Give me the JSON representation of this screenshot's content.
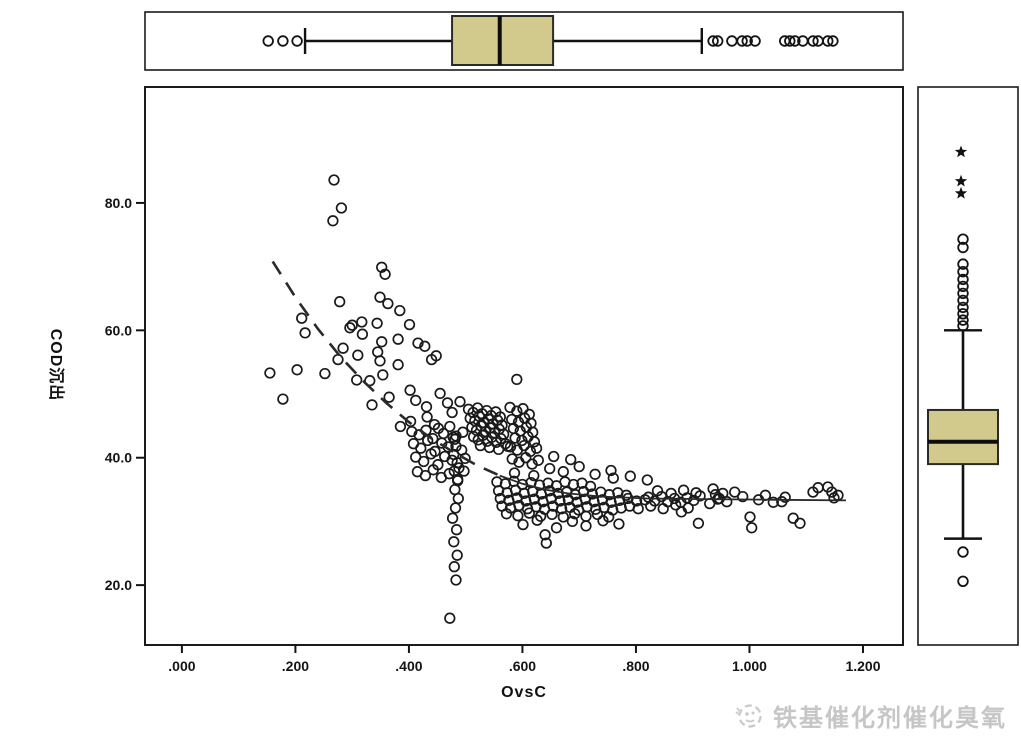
{
  "page": {
    "background": "#ffffff"
  },
  "watermark": {
    "text": "铁基催化剂催化臭氧",
    "color": "#c6c6c6",
    "icon": "brand-logo-icon"
  },
  "chart_data": {
    "type": "scatter",
    "title": "",
    "xlabel": "OvsC",
    "ylabel": "COD沉出",
    "xlim": [
      -0.065,
      1.2705
    ],
    "ylim": [
      10.6,
      98.2
    ],
    "x_ticks": [
      0.0,
      0.2,
      0.4,
      0.6,
      0.8,
      1.0,
      1.2
    ],
    "x_tick_labels": [
      ".000",
      ".200",
      ".400",
      ".600",
      ".800",
      "1.000",
      "1.200"
    ],
    "y_ticks": [
      20,
      40,
      60,
      80
    ],
    "y_tick_labels": [
      "20.0",
      "40.0",
      "60.0",
      "80.0"
    ],
    "grid": false,
    "legend": "none",
    "marker": {
      "shape": "open-circle",
      "color": "#1a1a1a",
      "radius_px": 4.8
    },
    "box_fill": "#d2ca8c",
    "box_stroke": "#2b2b26",
    "fit_line": {
      "color": "#2a2a2a",
      "dashed_points": [
        [
          0.16,
          70.8
        ],
        [
          0.2,
          65.2
        ],
        [
          0.24,
          60.2
        ],
        [
          0.28,
          55.8
        ],
        [
          0.32,
          52.0
        ],
        [
          0.36,
          48.6
        ],
        [
          0.4,
          45.6
        ],
        [
          0.44,
          43.0
        ],
        [
          0.48,
          40.8
        ],
        [
          0.52,
          38.8
        ],
        [
          0.56,
          37.2
        ]
      ],
      "solid_points": [
        [
          0.56,
          37.2
        ],
        [
          0.6,
          35.9
        ],
        [
          0.64,
          35.0
        ],
        [
          0.68,
          34.4
        ],
        [
          0.74,
          33.9
        ],
        [
          0.82,
          33.6
        ],
        [
          0.92,
          33.5
        ],
        [
          1.05,
          33.4
        ],
        [
          1.17,
          33.3
        ]
      ]
    },
    "marginal_box_x": {
      "orientation": "horizontal",
      "whisker_low": 0.217,
      "q1": 0.476,
      "median": 0.56,
      "q3": 0.654,
      "whisker_high": 0.916,
      "outliers_low": [
        0.152,
        0.178,
        0.203
      ],
      "outliers_high": [
        0.936,
        0.944,
        0.969,
        0.987,
        0.996,
        1.01,
        1.062,
        1.071,
        1.08,
        1.094,
        1.112,
        1.121,
        1.138,
        1.147
      ]
    },
    "marginal_box_y": {
      "orientation": "vertical",
      "whisker_low": 27.3,
      "q1": 39.0,
      "median": 42.5,
      "q3": 47.5,
      "whisker_high": 60.0,
      "outliers_low": [
        25.2,
        20.6
      ],
      "outliers_high": [
        60.7,
        61.6,
        62.6,
        63.6,
        64.7,
        65.8,
        66.9,
        68.0,
        69.2,
        70.4,
        73.0,
        74.3
      ],
      "extremes_high": [
        81.5,
        83.4,
        88.0
      ]
    },
    "points": [
      [
        0.268,
        83.6
      ],
      [
        0.281,
        79.2
      ],
      [
        0.266,
        77.2
      ],
      [
        0.352,
        69.9
      ],
      [
        0.358,
        68.8
      ],
      [
        0.349,
        65.2
      ],
      [
        0.278,
        64.5
      ],
      [
        0.363,
        64.2
      ],
      [
        0.384,
        63.1
      ],
      [
        0.211,
        61.9
      ],
      [
        0.317,
        61.3
      ],
      [
        0.344,
        61.1
      ],
      [
        0.401,
        60.9
      ],
      [
        0.3,
        60.8
      ],
      [
        0.296,
        60.4
      ],
      [
        0.217,
        59.6
      ],
      [
        0.318,
        59.4
      ],
      [
        0.381,
        58.6
      ],
      [
        0.352,
        58.2
      ],
      [
        0.416,
        58.0
      ],
      [
        0.428,
        57.5
      ],
      [
        0.448,
        56.0
      ],
      [
        0.44,
        55.4
      ],
      [
        0.284,
        57.2
      ],
      [
        0.345,
        56.6
      ],
      [
        0.31,
        56.1
      ],
      [
        0.275,
        55.4
      ],
      [
        0.349,
        55.2
      ],
      [
        0.381,
        54.6
      ],
      [
        0.203,
        53.8
      ],
      [
        0.155,
        53.3
      ],
      [
        0.252,
        53.2
      ],
      [
        0.354,
        53.0
      ],
      [
        0.308,
        52.2
      ],
      [
        0.331,
        52.1
      ],
      [
        0.59,
        52.3
      ],
      [
        0.178,
        49.2
      ],
      [
        0.335,
        48.3
      ],
      [
        0.365,
        49.5
      ],
      [
        0.402,
        50.6
      ],
      [
        0.455,
        50.1
      ],
      [
        0.412,
        49.0
      ],
      [
        0.468,
        48.6
      ],
      [
        0.431,
        48.0
      ],
      [
        0.476,
        47.1
      ],
      [
        0.49,
        48.8
      ],
      [
        0.432,
        46.4
      ],
      [
        0.445,
        45.2
      ],
      [
        0.403,
        45.7
      ],
      [
        0.385,
        44.9
      ],
      [
        0.405,
        44.1
      ],
      [
        0.418,
        43.6
      ],
      [
        0.43,
        44.3
      ],
      [
        0.442,
        43.0
      ],
      [
        0.452,
        44.6
      ],
      [
        0.461,
        43.8
      ],
      [
        0.472,
        44.9
      ],
      [
        0.483,
        43.4
      ],
      [
        0.495,
        44.0
      ],
      [
        0.408,
        42.2
      ],
      [
        0.421,
        41.5
      ],
      [
        0.433,
        42.7
      ],
      [
        0.446,
        41.0
      ],
      [
        0.458,
        42.3
      ],
      [
        0.469,
        41.7
      ],
      [
        0.481,
        42.9
      ],
      [
        0.493,
        41.2
      ],
      [
        0.412,
        40.1
      ],
      [
        0.426,
        39.4
      ],
      [
        0.439,
        40.6
      ],
      [
        0.451,
        38.9
      ],
      [
        0.463,
        40.2
      ],
      [
        0.476,
        39.6
      ],
      [
        0.488,
        38.4
      ],
      [
        0.499,
        39.9
      ],
      [
        0.415,
        37.8
      ],
      [
        0.429,
        37.2
      ],
      [
        0.443,
        38.1
      ],
      [
        0.457,
        36.9
      ],
      [
        0.471,
        37.5
      ],
      [
        0.486,
        36.6
      ],
      [
        0.497,
        37.9
      ],
      [
        0.505,
        47.6
      ],
      [
        0.513,
        47.1
      ],
      [
        0.521,
        47.8
      ],
      [
        0.529,
        46.9
      ],
      [
        0.537,
        47.4
      ],
      [
        0.545,
        46.6
      ],
      [
        0.553,
        47.2
      ],
      [
        0.561,
        46.4
      ],
      [
        0.508,
        46.2
      ],
      [
        0.516,
        45.8
      ],
      [
        0.524,
        46.5
      ],
      [
        0.532,
        45.5
      ],
      [
        0.54,
        46.1
      ],
      [
        0.548,
        45.3
      ],
      [
        0.556,
        45.9
      ],
      [
        0.564,
        45.1
      ],
      [
        0.511,
        44.8
      ],
      [
        0.519,
        44.3
      ],
      [
        0.527,
        45.0
      ],
      [
        0.535,
        44.1
      ],
      [
        0.543,
        44.7
      ],
      [
        0.551,
        43.9
      ],
      [
        0.559,
        44.5
      ],
      [
        0.567,
        43.7
      ],
      [
        0.514,
        43.3
      ],
      [
        0.522,
        42.8
      ],
      [
        0.53,
        43.5
      ],
      [
        0.538,
        42.6
      ],
      [
        0.546,
        43.2
      ],
      [
        0.554,
        42.4
      ],
      [
        0.562,
        43.0
      ],
      [
        0.57,
        42.2
      ],
      [
        0.526,
        41.9
      ],
      [
        0.542,
        41.6
      ],
      [
        0.558,
        41.3
      ],
      [
        0.574,
        41.8
      ],
      [
        0.478,
        43.2
      ],
      [
        0.483,
        41.8
      ],
      [
        0.479,
        40.5
      ],
      [
        0.485,
        39.2
      ],
      [
        0.48,
        37.9
      ],
      [
        0.486,
        36.4
      ],
      [
        0.481,
        35.0
      ],
      [
        0.487,
        33.6
      ],
      [
        0.482,
        32.1
      ],
      [
        0.477,
        30.5
      ],
      [
        0.484,
        28.7
      ],
      [
        0.479,
        26.8
      ],
      [
        0.485,
        24.7
      ],
      [
        0.48,
        22.9
      ],
      [
        0.483,
        20.8
      ],
      [
        0.472,
        14.8
      ],
      [
        0.578,
        47.9
      ],
      [
        0.59,
        47.3
      ],
      [
        0.601,
        47.7
      ],
      [
        0.612,
        46.8
      ],
      [
        0.581,
        46.0
      ],
      [
        0.593,
        45.6
      ],
      [
        0.604,
        46.2
      ],
      [
        0.615,
        45.4
      ],
      [
        0.584,
        44.6
      ],
      [
        0.596,
        44.2
      ],
      [
        0.607,
        44.8
      ],
      [
        0.618,
        44.0
      ],
      [
        0.587,
        43.1
      ],
      [
        0.599,
        42.7
      ],
      [
        0.61,
        43.3
      ],
      [
        0.621,
        42.5
      ],
      [
        0.579,
        41.7
      ],
      [
        0.591,
        41.2
      ],
      [
        0.603,
        41.9
      ],
      [
        0.614,
        41.0
      ],
      [
        0.625,
        41.5
      ],
      [
        0.582,
        39.8
      ],
      [
        0.594,
        39.3
      ],
      [
        0.606,
        40.0
      ],
      [
        0.617,
        39.0
      ],
      [
        0.628,
        39.6
      ],
      [
        0.586,
        37.6
      ],
      [
        0.62,
        37.2
      ],
      [
        0.555,
        36.2
      ],
      [
        0.57,
        35.9
      ],
      [
        0.585,
        36.3
      ],
      [
        0.6,
        35.8
      ],
      [
        0.615,
        36.1
      ],
      [
        0.63,
        35.7
      ],
      [
        0.645,
        36.0
      ],
      [
        0.66,
        35.6
      ],
      [
        0.675,
        36.2
      ],
      [
        0.69,
        35.8
      ],
      [
        0.705,
        36.0
      ],
      [
        0.72,
        35.5
      ],
      [
        0.558,
        34.8
      ],
      [
        0.573,
        34.5
      ],
      [
        0.588,
        34.9
      ],
      [
        0.603,
        34.4
      ],
      [
        0.618,
        34.7
      ],
      [
        0.633,
        34.3
      ],
      [
        0.648,
        34.8
      ],
      [
        0.663,
        34.4
      ],
      [
        0.678,
        34.6
      ],
      [
        0.693,
        34.2
      ],
      [
        0.708,
        34.7
      ],
      [
        0.723,
        34.3
      ],
      [
        0.738,
        34.6
      ],
      [
        0.753,
        34.2
      ],
      [
        0.768,
        34.5
      ],
      [
        0.783,
        34.1
      ],
      [
        0.561,
        33.6
      ],
      [
        0.576,
        33.3
      ],
      [
        0.591,
        33.7
      ],
      [
        0.606,
        33.2
      ],
      [
        0.621,
        33.5
      ],
      [
        0.636,
        33.1
      ],
      [
        0.651,
        33.6
      ],
      [
        0.666,
        33.2
      ],
      [
        0.681,
        33.4
      ],
      [
        0.696,
        33.0
      ],
      [
        0.711,
        33.5
      ],
      [
        0.726,
        33.1
      ],
      [
        0.741,
        33.4
      ],
      [
        0.756,
        33.0
      ],
      [
        0.771,
        33.3
      ],
      [
        0.786,
        33.6
      ],
      [
        0.801,
        33.2
      ],
      [
        0.816,
        33.4
      ],
      [
        0.564,
        32.4
      ],
      [
        0.579,
        32.1
      ],
      [
        0.594,
        32.5
      ],
      [
        0.609,
        32.0
      ],
      [
        0.624,
        32.3
      ],
      [
        0.639,
        31.9
      ],
      [
        0.654,
        32.4
      ],
      [
        0.669,
        32.0
      ],
      [
        0.684,
        32.2
      ],
      [
        0.699,
        31.8
      ],
      [
        0.714,
        32.3
      ],
      [
        0.729,
        31.9
      ],
      [
        0.744,
        32.2
      ],
      [
        0.759,
        31.8
      ],
      [
        0.774,
        32.1
      ],
      [
        0.789,
        32.4
      ],
      [
        0.804,
        32.0
      ],
      [
        0.572,
        31.2
      ],
      [
        0.592,
        30.9
      ],
      [
        0.612,
        31.3
      ],
      [
        0.632,
        30.8
      ],
      [
        0.652,
        31.1
      ],
      [
        0.672,
        30.7
      ],
      [
        0.692,
        31.2
      ],
      [
        0.712,
        30.8
      ],
      [
        0.732,
        31.1
      ],
      [
        0.752,
        30.7
      ],
      [
        0.601,
        29.5
      ],
      [
        0.626,
        30.2
      ],
      [
        0.64,
        27.9
      ],
      [
        0.642,
        26.6
      ],
      [
        0.66,
        29.0
      ],
      [
        0.688,
        30.0
      ],
      [
        0.712,
        29.3
      ],
      [
        0.742,
        30.1
      ],
      [
        0.77,
        29.6
      ],
      [
        0.648,
        38.3
      ],
      [
        0.672,
        37.8
      ],
      [
        0.7,
        38.6
      ],
      [
        0.728,
        37.4
      ],
      [
        0.756,
        38.0
      ],
      [
        0.79,
        37.1
      ],
      [
        0.655,
        40.2
      ],
      [
        0.685,
        39.7
      ],
      [
        0.76,
        36.8
      ],
      [
        0.82,
        36.5
      ],
      [
        0.822,
        33.8
      ],
      [
        0.833,
        33.2
      ],
      [
        0.845,
        33.9
      ],
      [
        0.856,
        33.1
      ],
      [
        0.868,
        33.6
      ],
      [
        0.879,
        33.0
      ],
      [
        0.89,
        33.7
      ],
      [
        0.902,
        33.3
      ],
      [
        0.913,
        34.0
      ],
      [
        0.826,
        32.4
      ],
      [
        0.848,
        32.0
      ],
      [
        0.87,
        32.6
      ],
      [
        0.892,
        32.1
      ],
      [
        0.838,
        34.8
      ],
      [
        0.862,
        34.4
      ],
      [
        0.884,
        34.9
      ],
      [
        0.906,
        34.5
      ],
      [
        0.88,
        31.5
      ],
      [
        0.91,
        29.7
      ],
      [
        0.93,
        32.8
      ],
      [
        0.944,
        33.5
      ],
      [
        0.936,
        35.1
      ],
      [
        0.94,
        34.2
      ],
      [
        0.947,
        33.6
      ],
      [
        0.953,
        34.4
      ],
      [
        0.96,
        33.1
      ],
      [
        0.974,
        34.6
      ],
      [
        0.988,
        33.9
      ],
      [
        1.001,
        30.7
      ],
      [
        1.004,
        29.0
      ],
      [
        1.016,
        33.4
      ],
      [
        1.028,
        34.1
      ],
      [
        1.042,
        33.0
      ],
      [
        1.057,
        33.1
      ],
      [
        1.063,
        33.8
      ],
      [
        1.077,
        30.5
      ],
      [
        1.089,
        29.7
      ],
      [
        1.112,
        34.6
      ],
      [
        1.121,
        35.3
      ],
      [
        1.138,
        35.4
      ],
      [
        1.145,
        34.6
      ],
      [
        1.156,
        34.1
      ],
      [
        1.149,
        33.7
      ]
    ]
  }
}
